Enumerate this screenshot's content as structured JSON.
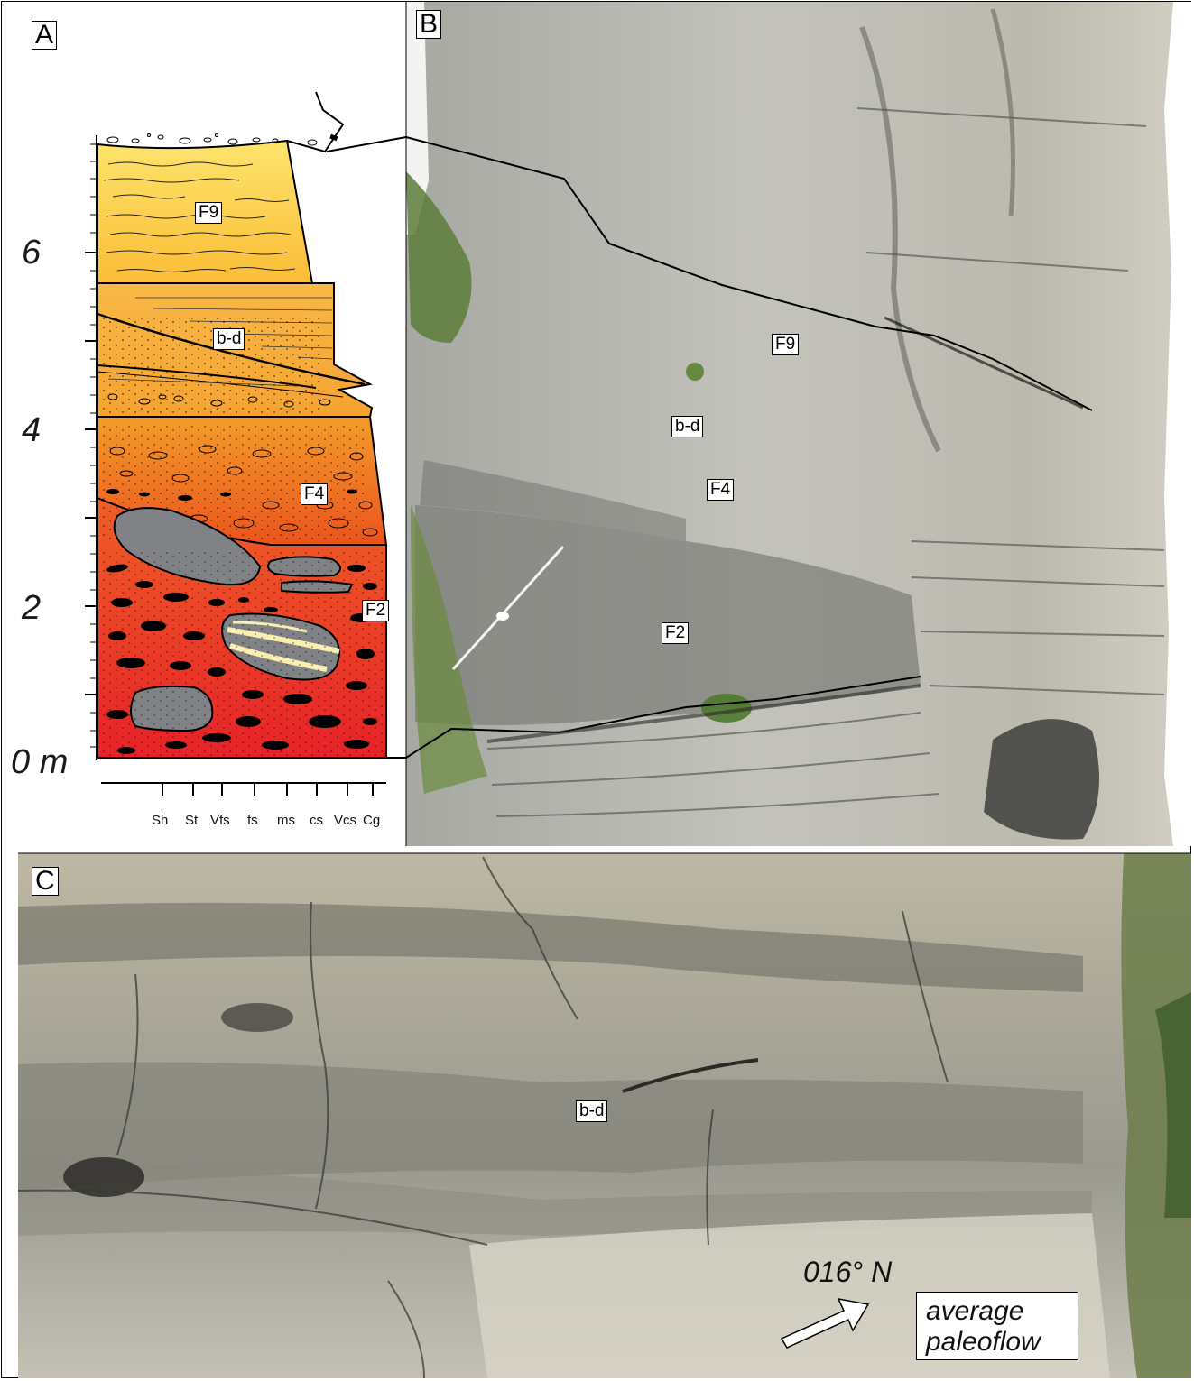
{
  "panels": {
    "a": "A",
    "b": "B",
    "c": "C"
  },
  "log": {
    "depth_labels": [
      "6",
      "4",
      "2",
      "0 m"
    ],
    "grain_sizes": [
      "Sh",
      "St",
      "Vfs",
      "fs",
      "ms",
      "cs",
      "Vcs",
      "Cg"
    ],
    "facies": {
      "f9": "F9",
      "bd": "b-d",
      "f4": "F4",
      "f2": "F2"
    }
  },
  "photo_b": {
    "labels": {
      "f9": "F9",
      "bd": "b-d",
      "f4": "F4",
      "f2": "F2"
    }
  },
  "photo_c": {
    "bd_label": "b-d",
    "paleoflow_bearing": "016° N",
    "paleoflow_line1": "average",
    "paleoflow_line2": "paleoflow"
  },
  "colors": {
    "f9_top": "#fde36a",
    "f9_bottom": "#fbbf38",
    "bd_fill": "#f7a93a",
    "f4_top": "#f59a2a",
    "f4_bottom": "#ec5a1e",
    "f2_top": "#ee5a26",
    "f2_bottom": "#e8232a",
    "clast_grey": "#7d7f82",
    "rock_light": "#bdbdb6",
    "rock_dark": "#8e8f8a"
  }
}
